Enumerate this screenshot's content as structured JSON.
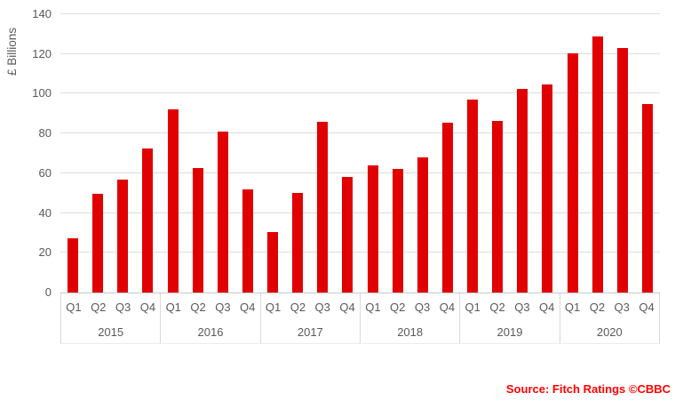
{
  "chart_data": {
    "type": "bar",
    "title": "",
    "xlabel": "",
    "ylabel": "£ Billions",
    "ylim": [
      0,
      140
    ],
    "ytick_step": 20,
    "ytick_labels": [
      "0",
      "20",
      "40",
      "60",
      "80",
      "100",
      "120",
      "140"
    ],
    "grid": true,
    "legend_position": "none",
    "year_groups": [
      "2015",
      "2016",
      "2017",
      "2018",
      "2019",
      "2020"
    ],
    "quarter_labels": [
      "Q1",
      "Q2",
      "Q3",
      "Q4"
    ],
    "values": [
      27.5,
      49.5,
      57,
      72.5,
      92,
      62.5,
      81,
      52,
      30.5,
      50,
      86,
      58,
      64,
      62,
      68,
      85.5,
      97,
      86.5,
      102.5,
      104.5,
      120.5,
      129,
      123,
      95
    ],
    "source": "Source: Fitch Ratings ©CBBC",
    "colors": {
      "bar": "#e00000",
      "source_text": "#ff0000",
      "axis_text": "#595959",
      "gridline": "#dcdcdc",
      "axis_line": "#c8c8c8",
      "separator": "#d9d9d9"
    }
  }
}
